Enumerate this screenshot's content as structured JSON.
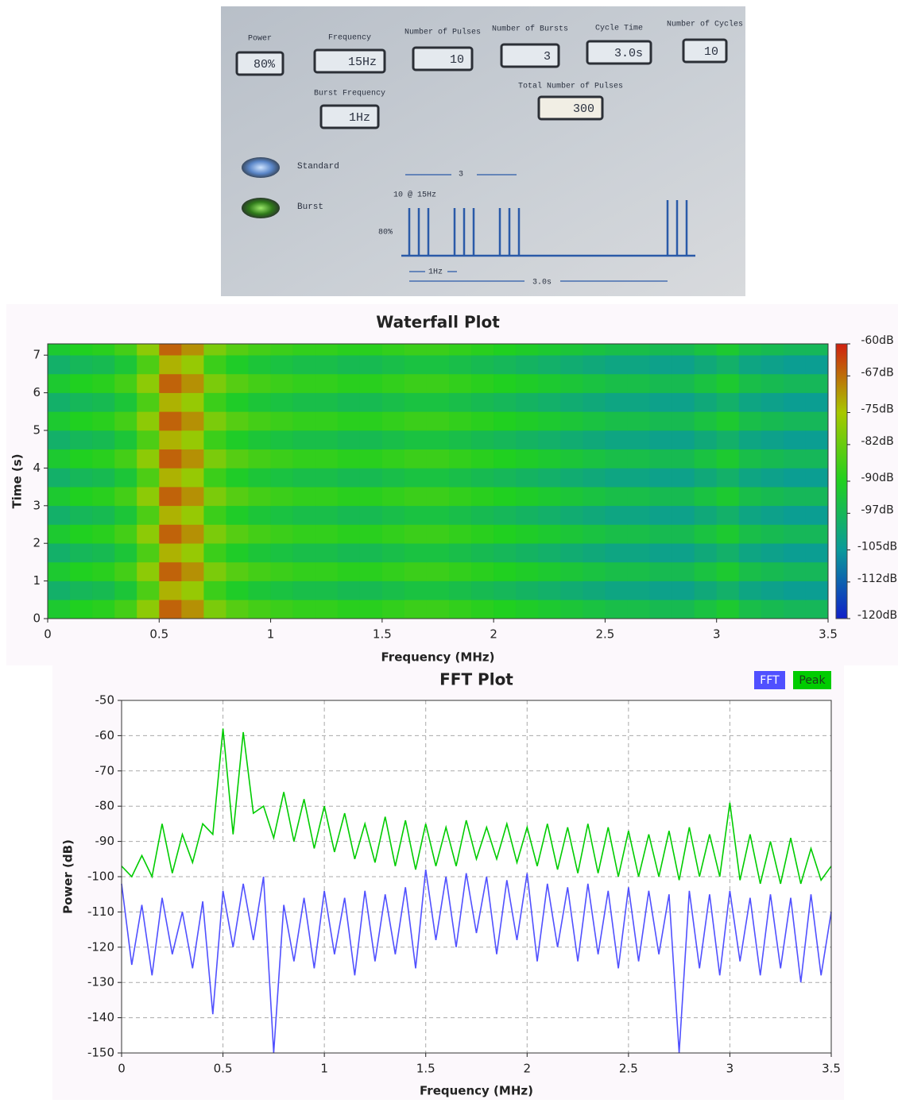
{
  "device_panel": {
    "fields": [
      {
        "label": "Power",
        "value": "80%"
      },
      {
        "label": "Frequency",
        "value": "15Hz"
      },
      {
        "label": "Number of Pulses",
        "value": "10"
      },
      {
        "label": "Number of Bursts",
        "value": "3"
      },
      {
        "label": "Cycle Time",
        "value": "3.0s"
      },
      {
        "label": "Number of Cycles",
        "value": "10"
      },
      {
        "label": "Burst Frequency",
        "value": "1Hz"
      },
      {
        "label": "Total Number of Pulses",
        "value": "300"
      }
    ],
    "modes": [
      "Standard",
      "Burst"
    ],
    "diagram": {
      "burst_count": "3",
      "pulse_label": "10 @ 15Hz",
      "amplitude": "80%",
      "burst_frequency": "1Hz",
      "cycle_time": "3.0s"
    }
  },
  "chart_data": [
    {
      "type": "heatmap",
      "title": "Waterfall Plot",
      "x_label": "Frequency (MHz)",
      "y_label": "Time (s)",
      "xlim": [
        0,
        3.5
      ],
      "xticks": [
        0,
        0.5,
        1,
        1.5,
        2,
        2.5,
        3,
        3.5
      ],
      "ylim": [
        0,
        7.3
      ],
      "yticks": [
        0,
        1,
        2,
        3,
        4,
        5,
        6,
        7
      ],
      "x_edges": [
        0,
        0.1,
        0.2,
        0.3,
        0.4,
        0.5,
        0.6,
        0.7,
        0.8,
        0.9,
        1,
        1.1,
        1.2,
        1.3,
        1.4,
        1.5,
        1.6,
        1.7,
        1.8,
        1.9,
        2,
        2.1,
        2.2,
        2.3,
        2.4,
        2.5,
        2.6,
        2.7,
        2.8,
        2.9,
        3,
        3.1,
        3.2,
        3.3,
        3.4,
        3.5
      ],
      "y_edges": [
        0,
        0.5,
        1,
        1.5,
        2,
        2.5,
        3,
        3.5,
        4,
        4.5,
        5,
        5.5,
        6,
        6.5,
        7,
        7.3
      ],
      "values": [
        [
          -92,
          -90,
          -89,
          -86,
          -78,
          -66,
          -70,
          -80,
          -84,
          -86,
          -87,
          -88,
          -88,
          -89,
          -89,
          -88,
          -87,
          -87,
          -88,
          -89,
          -90,
          -91,
          -92,
          -93,
          -94,
          -95,
          -95,
          -96,
          -96,
          -94,
          -92,
          -95,
          -96,
          -97,
          -97
        ],
        [
          -99,
          -97,
          -96,
          -93,
          -85,
          -73,
          -77,
          -87,
          -91,
          -93,
          -94,
          -95,
          -95,
          -96,
          -96,
          -95,
          -94,
          -94,
          -95,
          -96,
          -97,
          -98,
          -99,
          -100,
          -101,
          -102,
          -102,
          -103,
          -103,
          -101,
          -99,
          -102,
          -103,
          -104,
          -104
        ],
        [
          -92,
          -90,
          -89,
          -86,
          -78,
          -66,
          -70,
          -80,
          -84,
          -86,
          -87,
          -88,
          -88,
          -89,
          -89,
          -88,
          -87,
          -87,
          -88,
          -89,
          -90,
          -91,
          -92,
          -93,
          -94,
          -95,
          -95,
          -96,
          -96,
          -94,
          -92,
          -95,
          -96,
          -97,
          -97
        ],
        [
          -99,
          -97,
          -96,
          -93,
          -85,
          -73,
          -77,
          -87,
          -91,
          -93,
          -94,
          -95,
          -95,
          -96,
          -96,
          -95,
          -94,
          -94,
          -95,
          -96,
          -97,
          -98,
          -99,
          -100,
          -101,
          -102,
          -102,
          -103,
          -103,
          -101,
          -99,
          -102,
          -103,
          -104,
          -104
        ],
        [
          -92,
          -90,
          -89,
          -86,
          -78,
          -66,
          -70,
          -80,
          -84,
          -86,
          -87,
          -88,
          -88,
          -89,
          -89,
          -88,
          -87,
          -87,
          -88,
          -89,
          -90,
          -91,
          -92,
          -93,
          -94,
          -95,
          -95,
          -96,
          -96,
          -94,
          -92,
          -95,
          -96,
          -97,
          -97
        ],
        [
          -99,
          -97,
          -96,
          -93,
          -85,
          -73,
          -77,
          -87,
          -91,
          -93,
          -94,
          -95,
          -95,
          -96,
          -96,
          -95,
          -94,
          -94,
          -95,
          -96,
          -97,
          -98,
          -99,
          -100,
          -101,
          -102,
          -102,
          -103,
          -103,
          -101,
          -99,
          -102,
          -103,
          -104,
          -104
        ],
        [
          -92,
          -90,
          -89,
          -86,
          -78,
          -66,
          -70,
          -80,
          -84,
          -86,
          -87,
          -88,
          -88,
          -89,
          -89,
          -88,
          -87,
          -87,
          -88,
          -89,
          -90,
          -91,
          -92,
          -93,
          -94,
          -95,
          -95,
          -96,
          -96,
          -94,
          -92,
          -95,
          -96,
          -97,
          -97
        ],
        [
          -99,
          -97,
          -96,
          -93,
          -85,
          -73,
          -77,
          -87,
          -91,
          -93,
          -94,
          -95,
          -95,
          -96,
          -96,
          -95,
          -94,
          -94,
          -95,
          -96,
          -97,
          -98,
          -99,
          -100,
          -101,
          -102,
          -102,
          -103,
          -103,
          -101,
          -99,
          -102,
          -103,
          -104,
          -104
        ],
        [
          -92,
          -90,
          -89,
          -86,
          -78,
          -66,
          -70,
          -80,
          -84,
          -86,
          -87,
          -88,
          -88,
          -89,
          -89,
          -88,
          -87,
          -87,
          -88,
          -89,
          -90,
          -91,
          -92,
          -93,
          -94,
          -95,
          -95,
          -96,
          -96,
          -94,
          -92,
          -95,
          -96,
          -97,
          -97
        ],
        [
          -99,
          -97,
          -96,
          -93,
          -85,
          -73,
          -77,
          -87,
          -91,
          -93,
          -94,
          -95,
          -95,
          -96,
          -96,
          -95,
          -94,
          -94,
          -95,
          -96,
          -97,
          -98,
          -99,
          -100,
          -101,
          -102,
          -102,
          -103,
          -103,
          -101,
          -99,
          -102,
          -103,
          -104,
          -104
        ],
        [
          -92,
          -90,
          -89,
          -86,
          -78,
          -66,
          -70,
          -80,
          -84,
          -86,
          -87,
          -88,
          -88,
          -89,
          -89,
          -88,
          -87,
          -87,
          -88,
          -89,
          -90,
          -91,
          -92,
          -93,
          -94,
          -95,
          -95,
          -96,
          -96,
          -94,
          -92,
          -95,
          -96,
          -97,
          -97
        ],
        [
          -99,
          -97,
          -96,
          -93,
          -85,
          -73,
          -77,
          -87,
          -91,
          -93,
          -94,
          -95,
          -95,
          -96,
          -96,
          -95,
          -94,
          -94,
          -95,
          -96,
          -97,
          -98,
          -99,
          -100,
          -101,
          -102,
          -102,
          -103,
          -103,
          -101,
          -99,
          -102,
          -103,
          -104,
          -104
        ],
        [
          -92,
          -90,
          -89,
          -86,
          -78,
          -66,
          -70,
          -80,
          -84,
          -86,
          -87,
          -88,
          -88,
          -89,
          -89,
          -88,
          -87,
          -87,
          -88,
          -89,
          -90,
          -91,
          -92,
          -93,
          -94,
          -95,
          -95,
          -96,
          -96,
          -94,
          -92,
          -95,
          -96,
          -97,
          -97
        ],
        [
          -99,
          -97,
          -96,
          -93,
          -85,
          -73,
          -77,
          -87,
          -91,
          -93,
          -94,
          -95,
          -95,
          -96,
          -96,
          -95,
          -94,
          -94,
          -95,
          -96,
          -97,
          -98,
          -99,
          -100,
          -101,
          -102,
          -102,
          -103,
          -103,
          -101,
          -99,
          -102,
          -103,
          -104,
          -104
        ],
        [
          -92,
          -90,
          -89,
          -86,
          -78,
          -66,
          -70,
          -80,
          -84,
          -86,
          -87,
          -88,
          -88,
          -89,
          -89,
          -88,
          -87,
          -87,
          -88,
          -89,
          -90,
          -91,
          -92,
          -93,
          -94,
          -95,
          -95,
          -96,
          -96,
          -94,
          -92,
          -95,
          -96,
          -97,
          -97
        ]
      ],
      "zlim": [
        -120,
        -60
      ],
      "zticks": [
        {
          "value": -60,
          "label": "-60dB"
        },
        {
          "value": -67,
          "label": "-67dB"
        },
        {
          "value": -75,
          "label": "-75dB"
        },
        {
          "value": -82,
          "label": "-82dB"
        },
        {
          "value": -90,
          "label": "-90dB"
        },
        {
          "value": -97,
          "label": "-97dB"
        },
        {
          "value": -105,
          "label": "-105dB"
        },
        {
          "value": -112,
          "label": "-112dB"
        },
        {
          "value": -120,
          "label": "-120dB"
        }
      ],
      "colors": [
        "#1020c8",
        "#0a9a9a",
        "#20d020",
        "#a8c800",
        "#d02010"
      ]
    },
    {
      "type": "line",
      "title": "FFT Plot",
      "x_label": "Frequency (MHz)",
      "y_label": "Power (dB)",
      "xlim": [
        0,
        3.5
      ],
      "xticks": [
        0,
        0.5,
        1,
        1.5,
        2,
        2.5,
        3,
        3.5
      ],
      "ylim": [
        -150,
        -50
      ],
      "yticks": [
        -50,
        -60,
        -70,
        -80,
        -90,
        -100,
        -110,
        -120,
        -130,
        -140,
        -150
      ],
      "grid": true,
      "legend": "top-right",
      "x": [
        0,
        0.05,
        0.1,
        0.15,
        0.2,
        0.25,
        0.3,
        0.35,
        0.4,
        0.45,
        0.5,
        0.55,
        0.6,
        0.65,
        0.7,
        0.75,
        0.8,
        0.85,
        0.9,
        0.95,
        1,
        1.05,
        1.1,
        1.15,
        1.2,
        1.25,
        1.3,
        1.35,
        1.4,
        1.45,
        1.5,
        1.55,
        1.6,
        1.65,
        1.7,
        1.75,
        1.8,
        1.85,
        1.9,
        1.95,
        2,
        2.05,
        2.1,
        2.15,
        2.2,
        2.25,
        2.3,
        2.35,
        2.4,
        2.45,
        2.5,
        2.55,
        2.6,
        2.65,
        2.7,
        2.75,
        2.8,
        2.85,
        2.9,
        2.95,
        3,
        3.05,
        3.1,
        3.15,
        3.2,
        3.25,
        3.3,
        3.35,
        3.4,
        3.45,
        3.5
      ],
      "series": [
        {
          "name": "FFT",
          "color": "#5050ff",
          "values": [
            -102,
            -125,
            -108,
            -128,
            -106,
            -122,
            -110,
            -126,
            -107,
            -139,
            -104,
            -120,
            -102,
            -118,
            -100,
            -150,
            -108,
            -124,
            -106,
            -126,
            -104,
            -122,
            -106,
            -128,
            -104,
            -124,
            -105,
            -122,
            -103,
            -126,
            -98,
            -118,
            -100,
            -120,
            -99,
            -116,
            -100,
            -122,
            -101,
            -118,
            -99,
            -124,
            -102,
            -120,
            -103,
            -124,
            -102,
            -122,
            -104,
            -126,
            -103,
            -124,
            -104,
            -122,
            -105,
            -150,
            -104,
            -126,
            -105,
            -128,
            -104,
            -124,
            -106,
            -128,
            -105,
            -126,
            -106,
            -130,
            -105,
            -128,
            -110
          ]
        },
        {
          "name": "Peak",
          "color": "#00cc00",
          "values": [
            -97,
            -100,
            -94,
            -100,
            -85,
            -99,
            -88,
            -96,
            -85,
            -88,
            -58,
            -88,
            -59,
            -82,
            -80,
            -89,
            -76,
            -90,
            -78,
            -92,
            -80,
            -93,
            -82,
            -95,
            -85,
            -96,
            -83,
            -97,
            -84,
            -98,
            -85,
            -97,
            -86,
            -97,
            -84,
            -95,
            -86,
            -95,
            -85,
            -96,
            -86,
            -97,
            -85,
            -98,
            -86,
            -99,
            -85,
            -99,
            -86,
            -100,
            -87,
            -100,
            -88,
            -100,
            -87,
            -101,
            -86,
            -100,
            -88,
            -100,
            -79,
            -101,
            -88,
            -102,
            -90,
            -102,
            -89,
            -102,
            -92,
            -101,
            -97
          ]
        }
      ]
    }
  ]
}
